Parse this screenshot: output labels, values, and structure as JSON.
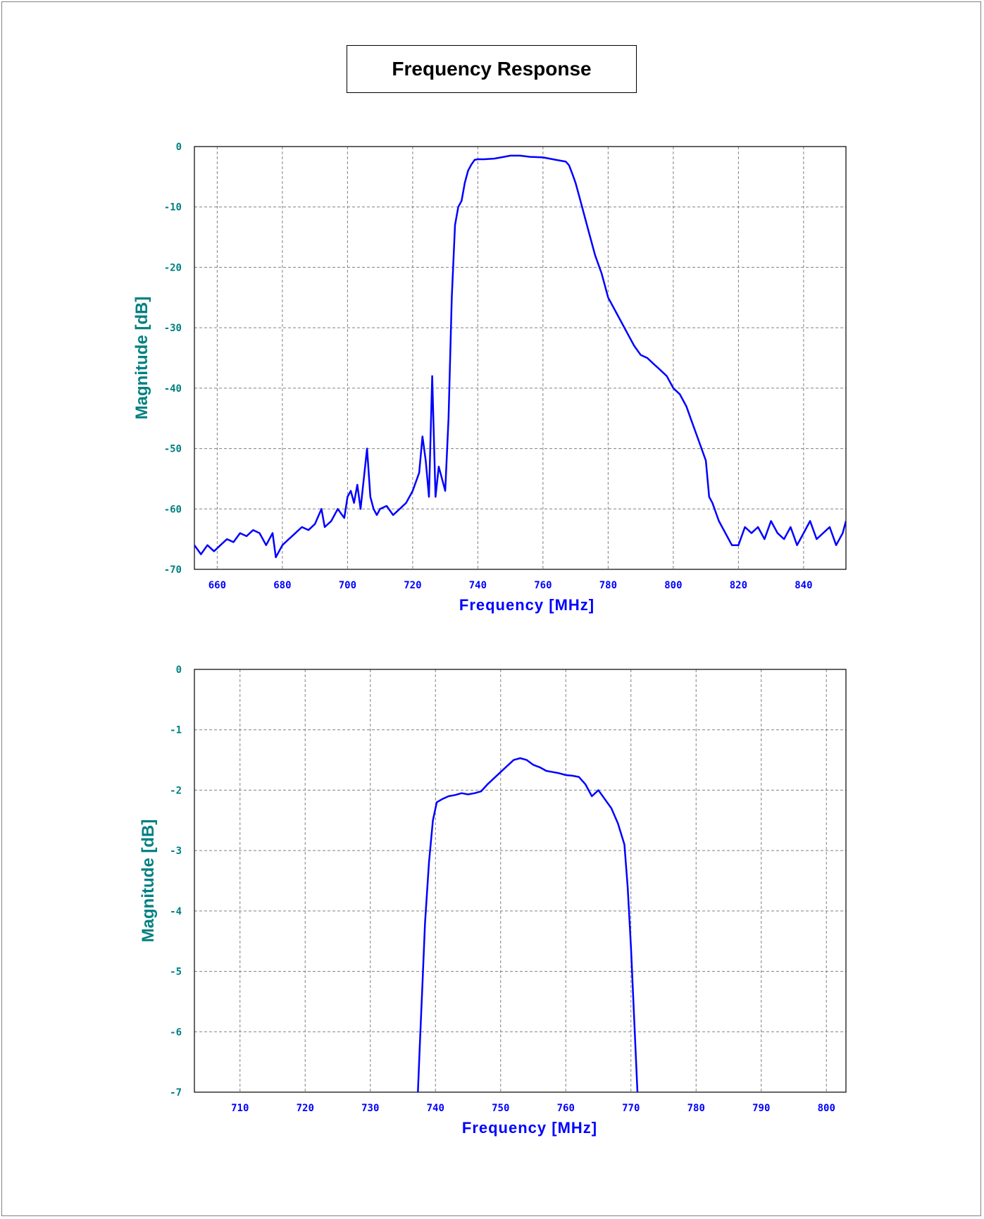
{
  "title": "Frequency Response",
  "colors": {
    "axis_text": "#008080",
    "x_tick_text": "#0000ff",
    "trace": "#0000ff",
    "grid": "#808080"
  },
  "chart_data": [
    {
      "type": "line",
      "xlabel": "Frequency [MHz]",
      "ylabel": "Magnitude [dB]",
      "xlim": [
        653,
        853
      ],
      "ylim": [
        -70,
        0
      ],
      "xticks": [
        660,
        680,
        700,
        720,
        740,
        760,
        780,
        800,
        820,
        840
      ],
      "yticks": [
        0,
        -10,
        -20,
        -30,
        -40,
        -50,
        -60,
        -70
      ],
      "grid": true,
      "series": [
        {
          "x": [
            653,
            655,
            657,
            659,
            661,
            663,
            665,
            667,
            669,
            671,
            673,
            675,
            677,
            678,
            680,
            682,
            684,
            686,
            688,
            690,
            692,
            693,
            695,
            697,
            699,
            700,
            701,
            702,
            703,
            704,
            705,
            706,
            707,
            708,
            709,
            710,
            712,
            714,
            716,
            718,
            720,
            722,
            723,
            724,
            725,
            726,
            727,
            728,
            729,
            730,
            731,
            732,
            733,
            734,
            735,
            736,
            737,
            738,
            739,
            740,
            742,
            745,
            748,
            750,
            753,
            756,
            760,
            764,
            767,
            768,
            769,
            770,
            771,
            772,
            774,
            776,
            778,
            780,
            782,
            784,
            786,
            788,
            790,
            792,
            794,
            796,
            798,
            800,
            802,
            804,
            806,
            808,
            810,
            811,
            812,
            814,
            816,
            818,
            820,
            822,
            824,
            826,
            828,
            830,
            832,
            834,
            836,
            838,
            840,
            842,
            844,
            846,
            848,
            850,
            852,
            853
          ],
          "y": [
            -66,
            -67.5,
            -66,
            -67,
            -66,
            -65,
            -65.5,
            -64,
            -64.5,
            -63.5,
            -64,
            -66,
            -64,
            -68,
            -66,
            -65,
            -64,
            -63,
            -63.5,
            -62.5,
            -60,
            -63,
            -62,
            -60,
            -61.5,
            -58,
            -57,
            -59,
            -56,
            -60,
            -55,
            -50,
            -58,
            -60,
            -61,
            -60,
            -59.5,
            -61,
            -60,
            -59,
            -57,
            -54,
            -48,
            -52,
            -58,
            -38,
            -58,
            -53,
            -55,
            -57,
            -45,
            -25,
            -13,
            -10,
            -9,
            -6,
            -4,
            -3,
            -2.2,
            -2.1,
            -2.1,
            -2.0,
            -1.7,
            -1.5,
            -1.5,
            -1.7,
            -1.8,
            -2.2,
            -2.5,
            -3.1,
            -4.5,
            -6,
            -8,
            -10,
            -14,
            -18,
            -21,
            -25,
            -27,
            -29,
            -31,
            -33,
            -34.5,
            -35,
            -36,
            -37,
            -38,
            -40,
            -41,
            -43,
            -46,
            -49,
            -52,
            -58,
            -59,
            -62,
            -64,
            -66,
            -66,
            -63,
            -64,
            -63,
            -65,
            -62,
            -64,
            -65,
            -63,
            -66,
            -64,
            -62,
            -65,
            -64,
            -63,
            -66,
            -64,
            -62
          ]
        }
      ]
    },
    {
      "type": "line",
      "xlabel": "Frequency [MHz]",
      "ylabel": "Magnitude [dB]",
      "xlim": [
        703,
        803
      ],
      "ylim": [
        -7,
        0
      ],
      "xticks": [
        710,
        720,
        730,
        740,
        750,
        760,
        770,
        780,
        790,
        800
      ],
      "yticks": [
        0,
        -1,
        -2,
        -3,
        -4,
        -5,
        -6,
        -7
      ],
      "grid": true,
      "series": [
        {
          "x": [
            737.3,
            737.6,
            738.0,
            738.4,
            739.0,
            739.6,
            740.2,
            741,
            742,
            743,
            744,
            745,
            746,
            747,
            748,
            749,
            750,
            751,
            752,
            753,
            754,
            755,
            756,
            757,
            758,
            759,
            760,
            761,
            762,
            763,
            764,
            765,
            766,
            767,
            768,
            769,
            769.5,
            770,
            770.5,
            771
          ],
          "y": [
            -7,
            -6.2,
            -5.2,
            -4.2,
            -3.2,
            -2.5,
            -2.2,
            -2.15,
            -2.1,
            -2.08,
            -2.05,
            -2.07,
            -2.05,
            -2.02,
            -1.9,
            -1.8,
            -1.7,
            -1.6,
            -1.5,
            -1.47,
            -1.5,
            -1.58,
            -1.62,
            -1.68,
            -1.7,
            -1.72,
            -1.75,
            -1.76,
            -1.78,
            -1.9,
            -2.1,
            -2.0,
            -2.15,
            -2.3,
            -2.55,
            -2.9,
            -3.6,
            -4.6,
            -5.8,
            -7
          ]
        }
      ]
    }
  ]
}
